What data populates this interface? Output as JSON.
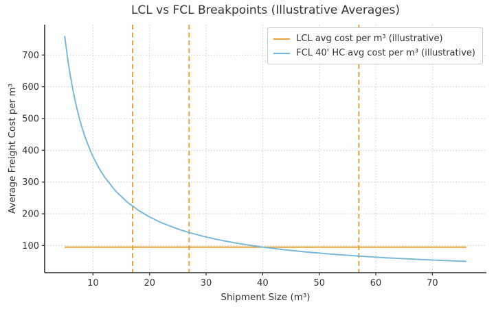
{
  "chart_data": {
    "type": "line",
    "title": "LCL vs FCL Breakpoints (Illustrative Averages)",
    "xlabel": "Shipment Size (m³)",
    "ylabel": "Average Freight Cost per m³",
    "xlim": [
      1.45,
      79.55
    ],
    "ylim": [
      14.5,
      795.5
    ],
    "xticks": [
      10,
      20,
      30,
      40,
      50,
      60,
      70
    ],
    "yticks": [
      100,
      200,
      300,
      400,
      500,
      600,
      700
    ],
    "grid": true,
    "grid_style": "dotted",
    "legend_position": "upper right",
    "series": [
      {
        "name": "LCL avg cost per m³ (illustrative)",
        "color": "#E8A33C",
        "style": "solid",
        "x": [
          5,
          76
        ],
        "y": [
          95,
          95
        ]
      },
      {
        "name": "FCL 40' HC avg cost per m³ (illustrative)",
        "color": "#72B7DA",
        "style": "solid",
        "x": [
          5,
          5.5,
          6,
          6.5,
          7,
          7.5,
          8,
          8.5,
          9,
          9.5,
          10,
          11,
          12,
          14,
          16,
          18,
          20,
          22,
          25,
          27,
          30,
          33,
          36,
          40,
          44,
          48,
          52,
          57,
          62,
          68,
          72,
          76
        ],
        "y": [
          760,
          690.9,
          633.3,
          584.6,
          542.9,
          506.7,
          475,
          447.1,
          422.2,
          400,
          380,
          345.5,
          316.7,
          271.4,
          237.5,
          211.1,
          190,
          172.7,
          152,
          140.7,
          126.7,
          115.2,
          105.6,
          95,
          86.4,
          79.2,
          73.1,
          66.7,
          61.3,
          55.9,
          52.8,
          50
        ]
      }
    ],
    "breakpoints": {
      "x": [
        17,
        27,
        57
      ],
      "color": "#E8A33C",
      "style": "dashed"
    }
  }
}
